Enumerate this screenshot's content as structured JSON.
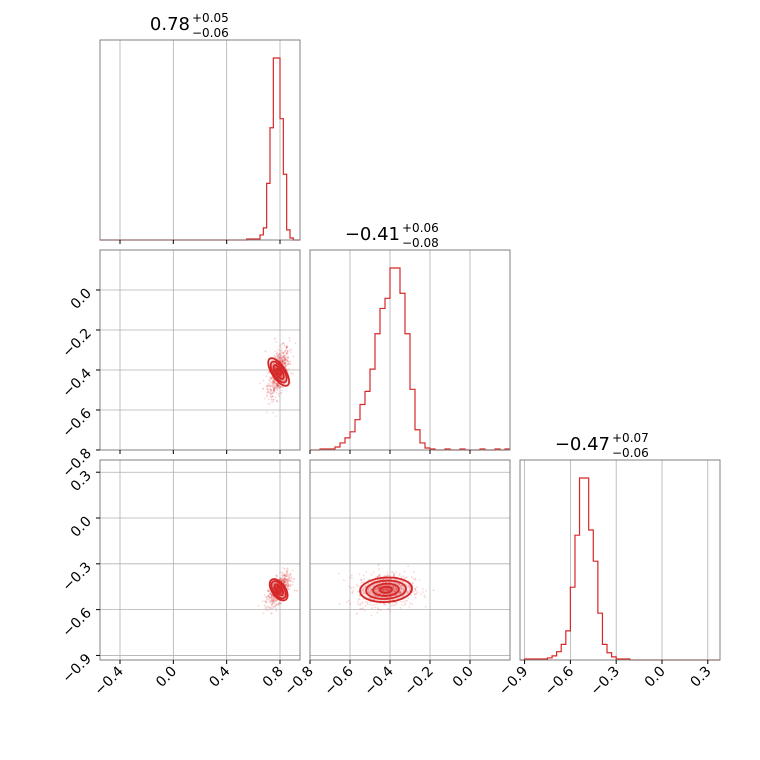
{
  "chart_data": {
    "type": "corner",
    "color": "#d62728",
    "grid": true,
    "parameters": [
      {
        "title_value": "0.78",
        "title_plus": "+0.05",
        "title_minus": "−0.06",
        "range": [
          -0.55,
          0.95
        ],
        "ticks": [
          -0.4,
          0.0,
          0.4,
          0.8
        ],
        "tick_labels": [
          "−0.4",
          "0.0",
          "0.4",
          "0.8"
        ],
        "hist_bins": [
          -0.55,
          -0.5,
          -0.45,
          -0.4,
          -0.35,
          -0.3,
          -0.25,
          -0.2,
          -0.15,
          -0.1,
          -0.05,
          0.0,
          0.05,
          0.1,
          0.15,
          0.2,
          0.25,
          0.3,
          0.35,
          0.4,
          0.45,
          0.5,
          0.55,
          0.6,
          0.625,
          0.65,
          0.675,
          0.7,
          0.725,
          0.75,
          0.775,
          0.8,
          0.825,
          0.85,
          0.875,
          0.9,
          0.925,
          0.95
        ],
        "hist_counts": [
          0,
          0,
          0,
          0,
          0,
          0,
          0,
          0,
          0,
          0,
          0,
          0,
          0,
          0,
          0,
          0,
          0,
          0,
          0,
          0,
          0,
          0,
          1,
          1,
          1,
          5,
          12,
          56,
          111,
          180,
          180,
          120,
          65,
          10,
          2,
          0,
          0
        ]
      },
      {
        "title_value": "−0.41",
        "title_plus": "+0.06",
        "title_minus": "−0.08",
        "range": [
          -0.8,
          0.2
        ],
        "ticks": [
          -0.8,
          -0.6,
          -0.4,
          -0.2,
          0.0
        ],
        "tick_labels": [
          "−0.8",
          "−0.6",
          "−0.4",
          "−0.2",
          "0.0"
        ],
        "hist_bins": [
          -0.8,
          -0.775,
          -0.75,
          -0.725,
          -0.7,
          -0.675,
          -0.65,
          -0.625,
          -0.6,
          -0.575,
          -0.55,
          -0.525,
          -0.5,
          -0.475,
          -0.45,
          -0.425,
          -0.4,
          -0.375,
          -0.35,
          -0.325,
          -0.3,
          -0.275,
          -0.25,
          -0.225,
          -0.2,
          -0.175,
          -0.15,
          -0.125,
          -0.1,
          -0.075,
          -0.05,
          -0.025,
          0.0,
          0.025,
          0.05,
          0.075,
          0.1,
          0.125,
          0.15,
          0.175,
          0.2
        ],
        "hist_counts": [
          0,
          0,
          1,
          1,
          1,
          3,
          7,
          12,
          18,
          30,
          45,
          58,
          80,
          115,
          140,
          150,
          180,
          180,
          155,
          115,
          60,
          20,
          7,
          2,
          1,
          0,
          0,
          1,
          0,
          0,
          1,
          0,
          0,
          0,
          1,
          0,
          0,
          1,
          0,
          1
        ]
      },
      {
        "title_value": "−0.47",
        "title_plus": "+0.07",
        "title_minus": "−0.06",
        "range": [
          -0.93,
          0.38
        ],
        "ticks": [
          -0.9,
          -0.6,
          -0.3,
          0.0,
          0.3
        ],
        "tick_labels": [
          "−0.9",
          "−0.6",
          "−0.3",
          "0.0",
          "0.3"
        ],
        "hist_bins": [
          -0.93,
          -0.9,
          -0.87,
          -0.84,
          -0.81,
          -0.78,
          -0.75,
          -0.72,
          -0.69,
          -0.66,
          -0.63,
          -0.6,
          -0.57,
          -0.54,
          -0.51,
          -0.48,
          -0.45,
          -0.42,
          -0.39,
          -0.36,
          -0.33,
          -0.3,
          -0.27,
          -0.24,
          -0.21,
          -0.18,
          -0.15,
          -0.12,
          -0.09,
          -0.06,
          -0.03,
          0.0,
          0.03,
          0.06,
          0.09,
          0.12,
          0.15,
          0.18,
          0.21,
          0.24,
          0.27,
          0.3,
          0.33,
          0.36,
          0.38
        ],
        "hist_counts": [
          0,
          1,
          1,
          1,
          1,
          1,
          2,
          4,
          8,
          15,
          28,
          70,
          120,
          175,
          175,
          125,
          95,
          45,
          15,
          7,
          3,
          1,
          1,
          1,
          0,
          0,
          0,
          0,
          0,
          0,
          0,
          0,
          0,
          0,
          0,
          0,
          0,
          0,
          0,
          0,
          0,
          0,
          0,
          0
        ]
      }
    ],
    "scatter_pairs": [
      {
        "row": 1,
        "col": 0,
        "center": [
          0.79,
          -0.41
        ],
        "spread": [
          0.04,
          0.06
        ],
        "corr": 0.55,
        "contour_levels": [
          [
            0.05,
            0.08
          ],
          [
            0.04,
            0.06
          ],
          [
            0.025,
            0.04
          ],
          [
            0.012,
            0.018
          ]
        ]
      },
      {
        "row": 2,
        "col": 0,
        "center": [
          0.79,
          -0.47
        ],
        "spread": [
          0.04,
          0.05
        ],
        "corr": 0.6,
        "contour_levels": [
          [
            0.05,
            0.08
          ],
          [
            0.04,
            0.065
          ],
          [
            0.025,
            0.04
          ],
          [
            0.012,
            0.02
          ]
        ]
      },
      {
        "row": 2,
        "col": 1,
        "center": [
          -0.42,
          -0.47
        ],
        "spread": [
          0.07,
          0.055
        ],
        "corr": 0.05,
        "contour_levels": [
          [
            0.13,
            0.08
          ],
          [
            0.1,
            0.06
          ],
          [
            0.065,
            0.04
          ],
          [
            0.03,
            0.02
          ]
        ]
      }
    ]
  }
}
